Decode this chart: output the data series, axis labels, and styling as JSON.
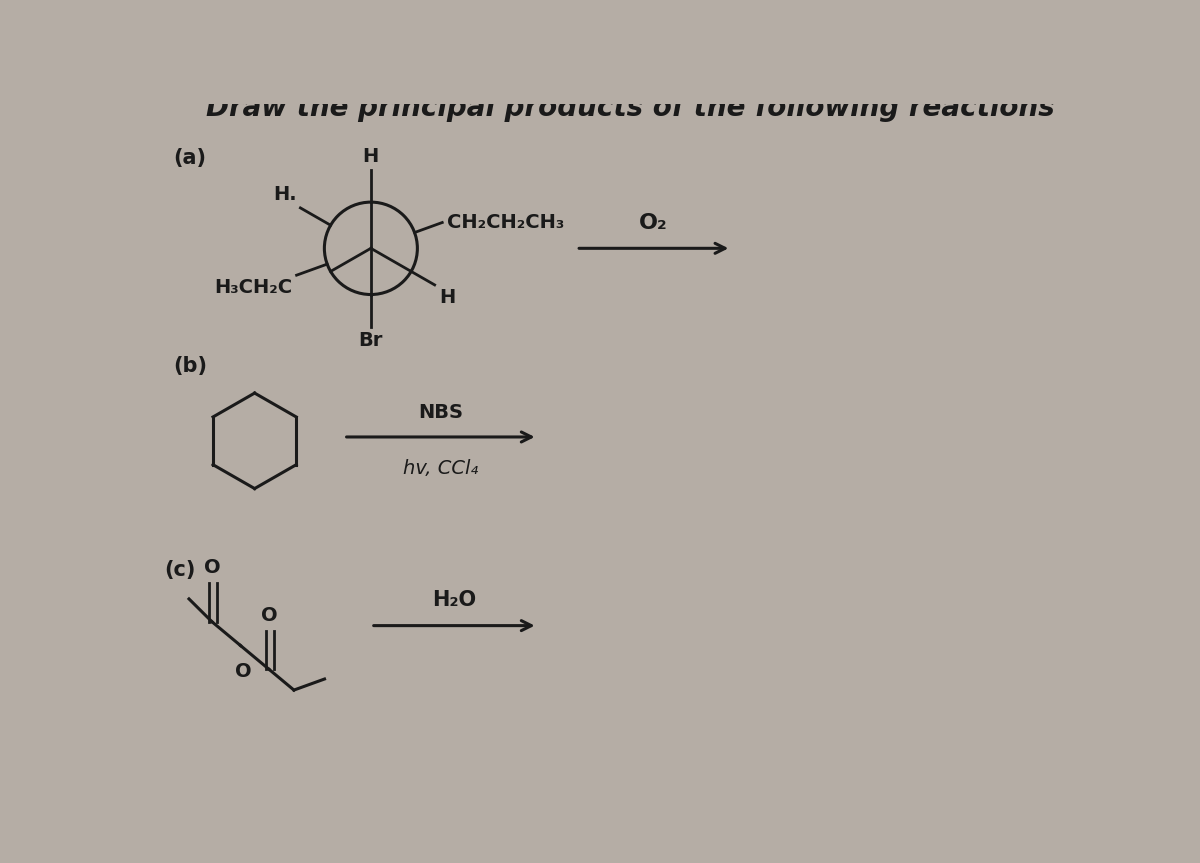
{
  "title": "Draw the principal products of the following reactions",
  "title_fontsize": 20,
  "bg_color": "#b5ada5",
  "text_color": "#1a1a1a",
  "label_a": "(a)",
  "label_b": "(b)",
  "label_c": "(c)",
  "reaction_a_reagent": "O₂",
  "reaction_b_reagent_top": "NBS",
  "reaction_b_reagent_bot": "hv, CCl₄",
  "reaction_c_reagent": "H₂O",
  "fs_base": 14
}
